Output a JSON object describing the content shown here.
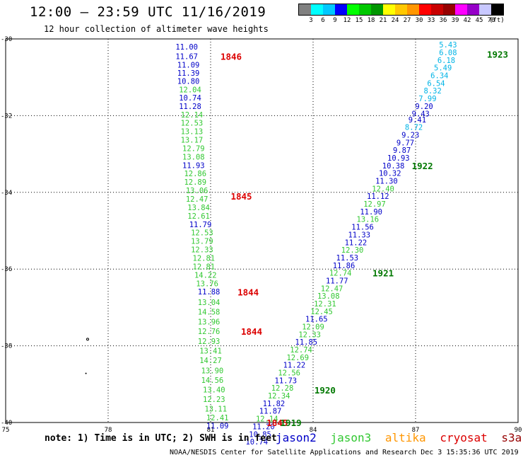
{
  "header": {
    "title": "12:00 – 23:59 UTC 11/16/2019",
    "subtitle": "12 hour collection of altimeter wave heights"
  },
  "legend": {
    "colors": [
      "#808080",
      "#00ffff",
      "#00c8ff",
      "#0000ff",
      "#00ff00",
      "#00c800",
      "#009600",
      "#ffff00",
      "#ffc800",
      "#ff9600",
      "#ff0000",
      "#c80000",
      "#960000",
      "#ff00ff",
      "#9600c8",
      "#c8c8ff",
      "#000000"
    ],
    "labels": [
      "3",
      "6",
      "9",
      "12",
      "15",
      "18",
      "21",
      "24",
      "27",
      "30",
      "33",
      "36",
      "39",
      "42",
      "45",
      "70",
      "(ft)"
    ]
  },
  "map": {
    "lon_range": [
      75,
      90
    ],
    "lat_range": [
      -30,
      -40
    ],
    "x_ticks": [
      "75",
      "78",
      "81",
      "84",
      "87",
      "90"
    ],
    "y_ticks": [
      "-30",
      "-32",
      "-34",
      "-36",
      "-38",
      "-40"
    ]
  },
  "satellite_colors": {
    "jason2": "#0000c8",
    "jason3": "#32c832",
    "altika": "#ff9600",
    "cryosat": "#dc0000",
    "s3a": "#960000",
    "cyan": "#00b4e6",
    "time_green": "#007800"
  },
  "tracks": [
    {
      "name": "track-1846",
      "obs": [
        {
          "lon": 80.3,
          "lat": -30.2,
          "v": "11.00",
          "c": "jason2"
        },
        {
          "lon": 80.3,
          "lat": -30.45,
          "v": "11.67",
          "c": "jason2"
        },
        {
          "lon": 80.35,
          "lat": -30.67,
          "v": "11.09",
          "c": "jason2"
        },
        {
          "lon": 80.35,
          "lat": -30.89,
          "v": "11.39",
          "c": "jason2"
        },
        {
          "lon": 80.35,
          "lat": -31.1,
          "v": "10.80",
          "c": "jason2"
        },
        {
          "lon": 80.4,
          "lat": -31.32,
          "v": "12.04",
          "c": "jason3"
        },
        {
          "lon": 80.4,
          "lat": -31.53,
          "v": "10.74",
          "c": "jason2"
        },
        {
          "lon": 80.4,
          "lat": -31.75,
          "v": "11.28",
          "c": "jason2"
        },
        {
          "lon": 80.45,
          "lat": -31.97,
          "v": "12.14",
          "c": "jason3"
        },
        {
          "lon": 80.45,
          "lat": -32.19,
          "v": "12.53",
          "c": "jason3"
        },
        {
          "lon": 80.45,
          "lat": -32.41,
          "v": "13.13",
          "c": "jason3"
        },
        {
          "lon": 80.45,
          "lat": -32.63,
          "v": "13.17",
          "c": "jason3"
        },
        {
          "lon": 80.5,
          "lat": -32.85,
          "v": "12.79",
          "c": "jason3"
        },
        {
          "lon": 80.5,
          "lat": -33.07,
          "v": "13.08",
          "c": "jason3"
        },
        {
          "lon": 80.5,
          "lat": -33.29,
          "v": "11.93",
          "c": "jason2"
        },
        {
          "lon": 80.55,
          "lat": -33.51,
          "v": "12.86",
          "c": "jason3"
        },
        {
          "lon": 80.55,
          "lat": -33.73,
          "v": "12.89",
          "c": "jason3"
        },
        {
          "lon": 80.6,
          "lat": -33.95,
          "v": "13.06",
          "c": "jason3"
        },
        {
          "lon": 80.6,
          "lat": -34.17,
          "v": "12.47",
          "c": "jason3"
        },
        {
          "lon": 80.65,
          "lat": -34.39,
          "v": "13.84",
          "c": "jason3"
        },
        {
          "lon": 80.65,
          "lat": -34.61,
          "v": "12.61",
          "c": "jason3"
        },
        {
          "lon": 80.7,
          "lat": -34.83,
          "v": "11.79",
          "c": "jason2"
        },
        {
          "lon": 80.75,
          "lat": -35.05,
          "v": "12.53",
          "c": "jason3"
        },
        {
          "lon": 80.75,
          "lat": -35.27,
          "v": "13.79",
          "c": "jason3"
        },
        {
          "lon": 80.75,
          "lat": -35.49,
          "v": "12.33",
          "c": "jason3"
        },
        {
          "lon": 80.8,
          "lat": -35.71,
          "v": "12.81",
          "c": "jason3"
        },
        {
          "lon": 80.8,
          "lat": -35.93,
          "v": "12.81",
          "c": "jason3"
        },
        {
          "lon": 80.85,
          "lat": -36.15,
          "v": "14.22",
          "c": "jason3"
        },
        {
          "lon": 80.9,
          "lat": -36.37,
          "v": "13.76",
          "c": "jason3"
        },
        {
          "lon": 80.95,
          "lat": -36.59,
          "v": "11.88",
          "c": "jason2"
        },
        {
          "lon": 80.95,
          "lat": -36.86,
          "v": "13.04",
          "c": "jason3"
        },
        {
          "lon": 80.95,
          "lat": -37.11,
          "v": "14.58",
          "c": "jason3"
        },
        {
          "lon": 80.95,
          "lat": -37.37,
          "v": "13.96",
          "c": "jason3"
        },
        {
          "lon": 80.95,
          "lat": -37.62,
          "v": "12.76",
          "c": "jason3"
        },
        {
          "lon": 80.95,
          "lat": -37.88,
          "v": "12.93",
          "c": "jason3"
        },
        {
          "lon": 81.0,
          "lat": -38.13,
          "v": "13.41",
          "c": "jason3"
        },
        {
          "lon": 81.0,
          "lat": -38.38,
          "v": "14.27",
          "c": "jason3"
        },
        {
          "lon": 81.05,
          "lat": -38.64,
          "v": "13.90",
          "c": "jason3"
        },
        {
          "lon": 81.05,
          "lat": -38.89,
          "v": "14.56",
          "c": "jason3"
        },
        {
          "lon": 81.1,
          "lat": -39.14,
          "v": "13.40",
          "c": "jason3"
        },
        {
          "lon": 81.1,
          "lat": -39.39,
          "v": "12.23",
          "c": "jason3"
        },
        {
          "lon": 81.15,
          "lat": -39.64,
          "v": "13.11",
          "c": "jason3"
        },
        {
          "lon": 81.2,
          "lat": -39.87,
          "v": "12.41",
          "c": "jason3"
        },
        {
          "lon": 81.2,
          "lat": -40.08,
          "v": "11.09",
          "c": "jason2"
        }
      ]
    },
    {
      "name": "track-1923",
      "obs": [
        {
          "lon": 87.95,
          "lat": -30.15,
          "v": "5.43",
          "c": "cyan"
        },
        {
          "lon": 87.95,
          "lat": -30.35,
          "v": "6.08",
          "c": "cyan"
        },
        {
          "lon": 87.9,
          "lat": -30.55,
          "v": "6.18",
          "c": "cyan"
        },
        {
          "lon": 87.8,
          "lat": -30.75,
          "v": "5.49",
          "c": "cyan"
        },
        {
          "lon": 87.7,
          "lat": -30.95,
          "v": "6.34",
          "c": "cyan"
        },
        {
          "lon": 87.6,
          "lat": -31.15,
          "v": "6.54",
          "c": "cyan"
        },
        {
          "lon": 87.5,
          "lat": -31.35,
          "v": "8.32",
          "c": "cyan"
        },
        {
          "lon": 87.35,
          "lat": -31.55,
          "v": "7.99",
          "c": "cyan"
        },
        {
          "lon": 87.25,
          "lat": -31.75,
          "v": "9.20",
          "c": "jason2"
        },
        {
          "lon": 87.15,
          "lat": -31.95,
          "v": "9.43",
          "c": "jason2"
        },
        {
          "lon": 87.05,
          "lat": -32.1,
          "v": "9.41",
          "c": "jason2"
        },
        {
          "lon": 86.95,
          "lat": -32.3,
          "v": "8.72",
          "c": "cyan"
        },
        {
          "lon": 86.85,
          "lat": -32.5,
          "v": "9.23",
          "c": "jason2"
        },
        {
          "lon": 86.7,
          "lat": -32.7,
          "v": "9.77",
          "c": "jason2"
        },
        {
          "lon": 86.6,
          "lat": -32.9,
          "v": "9.87",
          "c": "jason2"
        },
        {
          "lon": 86.5,
          "lat": -33.1,
          "v": "10.93",
          "c": "jason2"
        },
        {
          "lon": 86.35,
          "lat": -33.3,
          "v": "10.38",
          "c": "jason2"
        },
        {
          "lon": 86.25,
          "lat": -33.5,
          "v": "10.32",
          "c": "jason2"
        },
        {
          "lon": 86.15,
          "lat": -33.7,
          "v": "11.30",
          "c": "jason2"
        },
        {
          "lon": 86.05,
          "lat": -33.9,
          "v": "12.40",
          "c": "jason3"
        },
        {
          "lon": 85.9,
          "lat": -34.1,
          "v": "11.12",
          "c": "jason2"
        },
        {
          "lon": 85.8,
          "lat": -34.3,
          "v": "12.97",
          "c": "jason3"
        },
        {
          "lon": 85.7,
          "lat": -34.5,
          "v": "11.90",
          "c": "jason2"
        },
        {
          "lon": 85.6,
          "lat": -34.7,
          "v": "13.16",
          "c": "jason3"
        },
        {
          "lon": 85.45,
          "lat": -34.9,
          "v": "11.56",
          "c": "jason2"
        },
        {
          "lon": 85.35,
          "lat": -35.1,
          "v": "11.33",
          "c": "jason2"
        },
        {
          "lon": 85.25,
          "lat": -35.3,
          "v": "11.22",
          "c": "jason2"
        },
        {
          "lon": 85.15,
          "lat": -35.5,
          "v": "12.30",
          "c": "jason3"
        },
        {
          "lon": 85.0,
          "lat": -35.7,
          "v": "11.53",
          "c": "jason2"
        },
        {
          "lon": 84.9,
          "lat": -35.9,
          "v": "11.86",
          "c": "jason2"
        },
        {
          "lon": 84.8,
          "lat": -36.1,
          "v": "12.74",
          "c": "jason3"
        },
        {
          "lon": 84.7,
          "lat": -36.3,
          "v": "11.77",
          "c": "jason2"
        },
        {
          "lon": 84.55,
          "lat": -36.5,
          "v": "12.47",
          "c": "jason3"
        },
        {
          "lon": 84.45,
          "lat": -36.7,
          "v": "13.08",
          "c": "jason3"
        },
        {
          "lon": 84.35,
          "lat": -36.9,
          "v": "12.31",
          "c": "jason3"
        },
        {
          "lon": 84.25,
          "lat": -37.1,
          "v": "12.45",
          "c": "jason3"
        },
        {
          "lon": 84.1,
          "lat": -37.3,
          "v": "11.65",
          "c": "jason2"
        },
        {
          "lon": 84.0,
          "lat": -37.5,
          "v": "12.09",
          "c": "jason3"
        },
        {
          "lon": 83.9,
          "lat": -37.7,
          "v": "12.33",
          "c": "jason3"
        },
        {
          "lon": 83.8,
          "lat": -37.9,
          "v": "11.85",
          "c": "jason2"
        },
        {
          "lon": 83.65,
          "lat": -38.1,
          "v": "12.74",
          "c": "jason3"
        },
        {
          "lon": 83.55,
          "lat": -38.3,
          "v": "12.69",
          "c": "jason3"
        },
        {
          "lon": 83.45,
          "lat": -38.5,
          "v": "11.22",
          "c": "jason2"
        },
        {
          "lon": 83.3,
          "lat": -38.7,
          "v": "12.56",
          "c": "jason3"
        },
        {
          "lon": 83.2,
          "lat": -38.9,
          "v": "11.73",
          "c": "jason2"
        },
        {
          "lon": 83.1,
          "lat": -39.1,
          "v": "12.28",
          "c": "jason3"
        },
        {
          "lon": 83.0,
          "lat": -39.3,
          "v": "12.34",
          "c": "jason3"
        },
        {
          "lon": 82.85,
          "lat": -39.5,
          "v": "11.82",
          "c": "jason2"
        },
        {
          "lon": 82.75,
          "lat": -39.7,
          "v": "11.87",
          "c": "jason2"
        },
        {
          "lon": 82.65,
          "lat": -39.9,
          "v": "12.14",
          "c": "jason3"
        },
        {
          "lon": 82.55,
          "lat": -40.1,
          "v": "11.20",
          "c": "jason2"
        },
        {
          "lon": 82.45,
          "lat": -40.3,
          "v": "10.85",
          "c": "jason2"
        },
        {
          "lon": 82.35,
          "lat": -40.5,
          "v": "10.74",
          "c": "jason2"
        }
      ]
    }
  ],
  "time_labels": [
    {
      "lon": 81.6,
      "lat": -30.45,
      "t": "1846",
      "c": "cryosat"
    },
    {
      "lon": 81.9,
      "lat": -34.1,
      "t": "1845",
      "c": "cryosat"
    },
    {
      "lon": 82.1,
      "lat": -36.6,
      "t": "1844",
      "c": "cryosat"
    },
    {
      "lon": 82.2,
      "lat": -37.62,
      "t": "1844",
      "c": "cryosat"
    },
    {
      "lon": 82.95,
      "lat": -40.0,
      "t": "1845",
      "c": "cryosat"
    },
    {
      "lon": 83.35,
      "lat": -40.0,
      "t": "1919",
      "c": "time_green"
    },
    {
      "lon": 89.4,
      "lat": -30.4,
      "t": "1923",
      "c": "time_green"
    },
    {
      "lon": 87.2,
      "lat": -33.3,
      "t": "1922",
      "c": "time_green"
    },
    {
      "lon": 86.05,
      "lat": -36.1,
      "t": "1921",
      "c": "time_green"
    },
    {
      "lon": 84.35,
      "lat": -39.15,
      "t": "1920",
      "c": "time_green"
    }
  ],
  "footer": {
    "note": "note: 1) Time is in UTC; 2) SWH is in feet",
    "satellites": [
      "jason2",
      "jason3",
      "altika",
      "cryosat",
      "s3a"
    ],
    "credit": "NOAA/NESDIS Center for Satellite Applications and Research   Dec  3 15:35:36 UTC 2019"
  }
}
